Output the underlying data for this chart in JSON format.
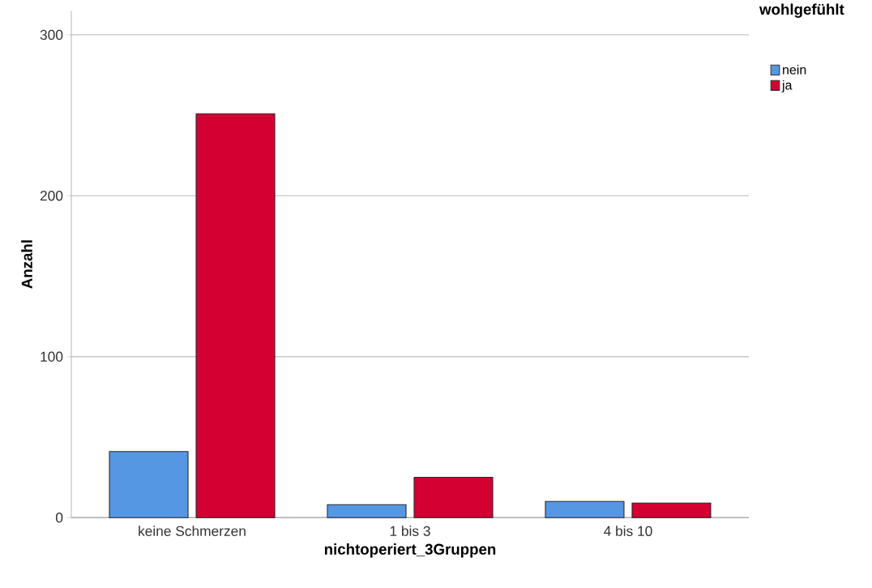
{
  "chart_data": {
    "type": "bar",
    "xlabel": "nichtoperiert_3Gruppen",
    "ylabel": "Anzahl",
    "legend_title": "wohlgefühlt",
    "categories": [
      "keine Schmerzen",
      "1 bis 3",
      "4 bis 10"
    ],
    "series": [
      {
        "name": "nein",
        "color": "#5697e4",
        "values": [
          41,
          8,
          10
        ]
      },
      {
        "name": "ja",
        "color": "#d50032",
        "values": [
          251,
          25,
          9
        ]
      }
    ],
    "ylim": [
      0,
      315
    ],
    "yticks": [
      0,
      100,
      200,
      300
    ],
    "grid": "y",
    "legend": "top right"
  }
}
